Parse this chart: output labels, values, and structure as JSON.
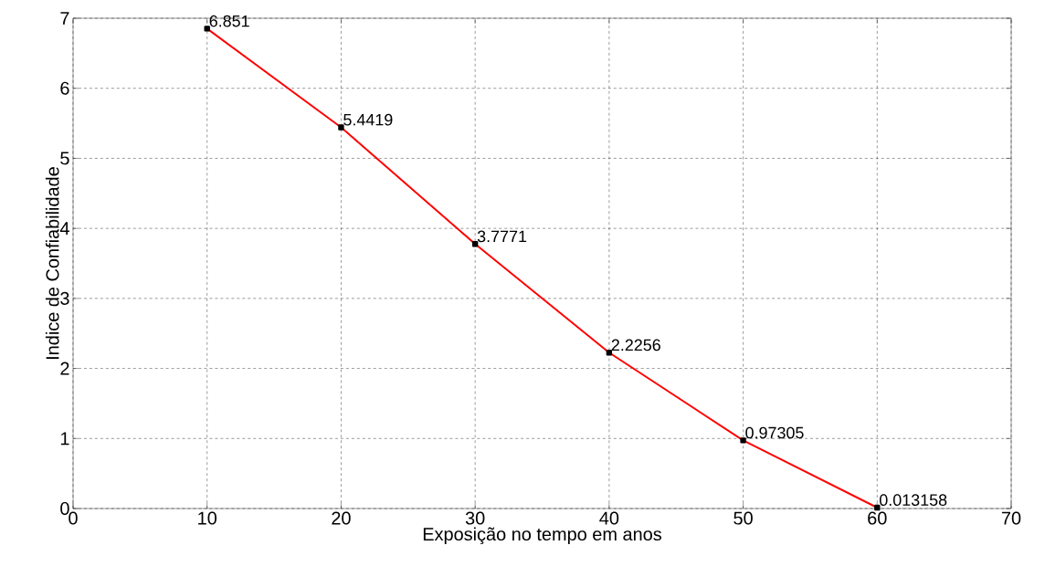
{
  "chart_data": {
    "type": "line",
    "xlabel": "Exposição no tempo em anos",
    "ylabel": "Indice de Confiabilidade",
    "x": [
      10,
      20,
      30,
      40,
      50,
      60
    ],
    "series": [
      {
        "color": "#ff0000",
        "values": [
          6.851,
          5.4419,
          3.7771,
          2.2256,
          0.97305,
          0.013158
        ]
      }
    ],
    "xlim": [
      0,
      70
    ],
    "xticks": [
      0,
      10,
      20,
      30,
      40,
      50,
      60,
      70
    ],
    "ylim": [
      0,
      7
    ],
    "yticks": [
      0,
      1,
      2,
      3,
      4,
      5,
      6,
      7
    ],
    "grid": true,
    "marker": "square",
    "line_style": "solid",
    "data_labels": true
  }
}
